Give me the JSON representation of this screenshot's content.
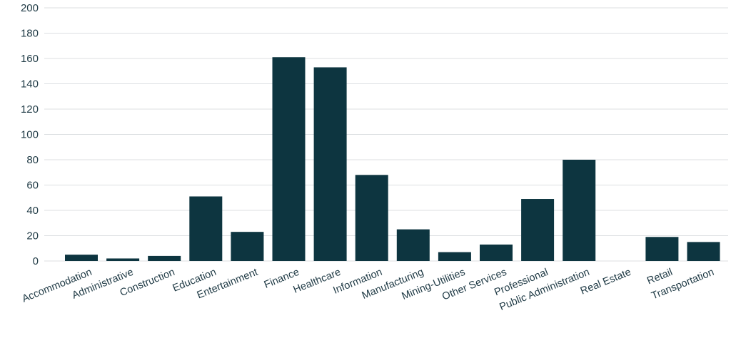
{
  "chart_data": {
    "type": "bar",
    "title": "",
    "xlabel": "",
    "ylabel": "",
    "ylim": [
      0,
      200
    ],
    "yticks": [
      0,
      20,
      40,
      60,
      80,
      100,
      120,
      140,
      160,
      180,
      200
    ],
    "grid": true,
    "categories": [
      "Accommodation",
      "Administrative",
      "Construction",
      "Education",
      "Entertainment",
      "Finance",
      "Healthcare",
      "Information",
      "Manufacturing",
      "Mining-Utilities",
      "Other Services",
      "Professional",
      "Public Administration",
      "Real Estate",
      "Retail",
      "Transportation"
    ],
    "values": [
      5,
      2,
      4,
      51,
      23,
      161,
      153,
      68,
      25,
      7,
      13,
      49,
      80,
      0,
      19,
      15
    ],
    "colors": {
      "bar": "#0d3540",
      "grid": "#dcdfe2",
      "text": "#1f3a45"
    }
  }
}
